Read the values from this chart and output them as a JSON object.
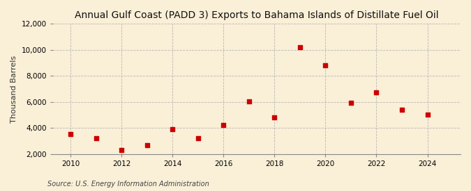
{
  "title": "Annual Gulf Coast (PADD 3) Exports to Bahama Islands of Distillate Fuel Oil",
  "ylabel": "Thousand Barrels",
  "source": "Source: U.S. Energy Information Administration",
  "background_color": "#faefd7",
  "years": [
    2010,
    2011,
    2012,
    2013,
    2014,
    2015,
    2016,
    2017,
    2018,
    2019,
    2020,
    2021,
    2022,
    2023,
    2024
  ],
  "values": [
    3520,
    3200,
    2310,
    2680,
    3920,
    3200,
    4220,
    6020,
    4820,
    10230,
    8830,
    5920,
    6720,
    5400,
    5030
  ],
  "marker_color": "#cc0000",
  "marker": "s",
  "marker_size": 4,
  "ylim": [
    2000,
    12000
  ],
  "yticks": [
    2000,
    4000,
    6000,
    8000,
    10000,
    12000
  ],
  "xticks": [
    2010,
    2012,
    2014,
    2016,
    2018,
    2020,
    2022,
    2024
  ],
  "grid_color": "#aaaaaa",
  "grid_style": "--",
  "title_fontsize": 10,
  "label_fontsize": 8,
  "tick_fontsize": 7.5,
  "source_fontsize": 7
}
